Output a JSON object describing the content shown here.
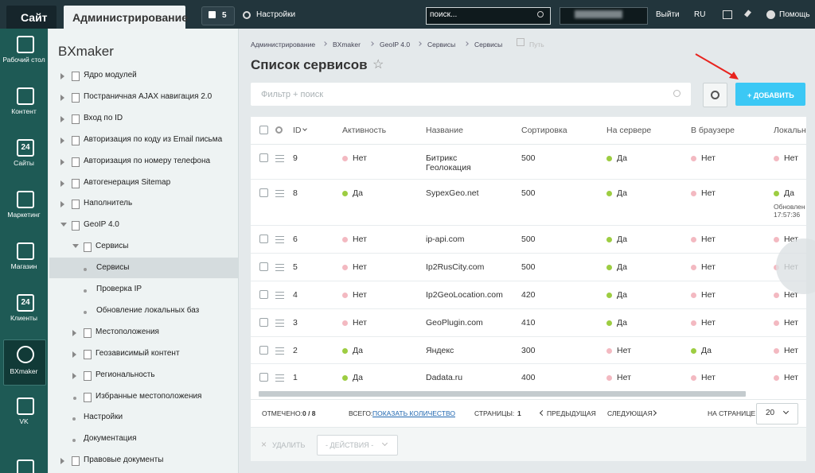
{
  "topbar": {
    "site": "Сайт",
    "admin": "Администрирование",
    "notifications": "5",
    "settings": "Настройки",
    "search_placeholder": "поиск...",
    "logout": "Выйти",
    "lang": "RU",
    "help": "Помощь"
  },
  "nav": [
    {
      "label": "Рабочий стол"
    },
    {
      "label": "Контент"
    },
    {
      "label": "Сайты",
      "icon_text": "24"
    },
    {
      "label": "Маркетинг"
    },
    {
      "label": "Магазин"
    },
    {
      "label": "Клиенты",
      "icon_text": "24"
    },
    {
      "label": "BXmaker",
      "active": true
    },
    {
      "label": "VK"
    }
  ],
  "tree": {
    "title": "BXmaker",
    "items": [
      {
        "label": "Ядро модулей",
        "level": 0,
        "toggle": "closed"
      },
      {
        "label": "Постраничная AJAX навигация 2.0",
        "level": 0,
        "toggle": "closed"
      },
      {
        "label": "Вход по ID",
        "level": 0,
        "toggle": "closed"
      },
      {
        "label": "Авторизация по коду из Email письма",
        "level": 0,
        "toggle": "closed"
      },
      {
        "label": "Авторизация по номеру телефона",
        "level": 0,
        "toggle": "closed"
      },
      {
        "label": "Автогенерация Sitemap",
        "level": 0,
        "toggle": "closed"
      },
      {
        "label": "Наполнитель",
        "level": 0,
        "toggle": "closed"
      },
      {
        "label": "GeoIP 4.0",
        "level": 0,
        "toggle": "open"
      },
      {
        "label": "Сервисы",
        "level": 1,
        "toggle": "open"
      },
      {
        "label": "Сервисы",
        "level": 2,
        "toggle": "none",
        "selected": true
      },
      {
        "label": "Проверка IP",
        "level": 2,
        "toggle": "none"
      },
      {
        "label": "Обновление локальных баз",
        "level": 2,
        "toggle": "none"
      },
      {
        "label": "Местоположения",
        "level": 1,
        "toggle": "closed"
      },
      {
        "label": "Геозависимый контент",
        "level": 1,
        "toggle": "closed"
      },
      {
        "label": "Региональность",
        "level": 1,
        "toggle": "closed"
      },
      {
        "label": "Избранные местоположения",
        "level": 1,
        "toggle": "leaf"
      },
      {
        "label": "Настройки",
        "level": 0,
        "toggle": "none"
      },
      {
        "label": "Документация",
        "level": 0,
        "toggle": "none"
      },
      {
        "label": "Правовые документы",
        "level": 0,
        "toggle": "closed"
      }
    ]
  },
  "breadcrumbs": [
    "Администрирование",
    "BXmaker",
    "GeoIP 4.0",
    "Сервисы",
    "Сервисы"
  ],
  "path_label": "Путь",
  "title": "Список сервисов",
  "filter_placeholder": "Фильтр + поиск",
  "add_button": "+ ДОБАВИТЬ",
  "table": {
    "columns": [
      "ID",
      "Активность",
      "Название",
      "Сортировка",
      "На сервере",
      "В браузере",
      "Локальн"
    ],
    "rows": [
      {
        "cells": [
          "9",
          {
            "text": "Нет",
            "color": "#f3b9c1"
          },
          "Битрикс Геолокация",
          "500",
          {
            "text": "Да",
            "color": "#9dcd42"
          },
          {
            "text": "Нет",
            "color": "#f3b9c1"
          },
          {
            "text": "Нет",
            "color": "#f3b9c1"
          }
        ]
      },
      {
        "cells": [
          "8",
          {
            "text": "Да",
            "color": "#9dcd42"
          },
          "SypexGeo.net",
          "500",
          {
            "text": "Да",
            "color": "#9dcd42"
          },
          {
            "text": "Нет",
            "color": "#f3b9c1"
          },
          {
            "text": "Да",
            "color": "#9dcd42"
          }
        ],
        "note": [
          "Обновлен",
          "17:57:36"
        ]
      },
      {
        "cells": [
          "6",
          {
            "text": "Нет",
            "color": "#f3b9c1"
          },
          "ip-api.com",
          "500",
          {
            "text": "Да",
            "color": "#9dcd42"
          },
          {
            "text": "Нет",
            "color": "#f3b9c1"
          },
          {
            "text": "Нет",
            "color": "#f3b9c1"
          }
        ]
      },
      {
        "cells": [
          "5",
          {
            "text": "Нет",
            "color": "#f3b9c1"
          },
          "Ip2RusCity.com",
          "500",
          {
            "text": "Да",
            "color": "#9dcd42"
          },
          {
            "text": "Нет",
            "color": "#f3b9c1"
          },
          {
            "text": "Нет",
            "color": "#f3b9c1"
          }
        ]
      },
      {
        "cells": [
          "4",
          {
            "text": "Нет",
            "color": "#f3b9c1"
          },
          "Ip2GeoLocation.com",
          "420",
          {
            "text": "Да",
            "color": "#9dcd42"
          },
          {
            "text": "Нет",
            "color": "#f3b9c1"
          },
          {
            "text": "Нет",
            "color": "#f3b9c1"
          }
        ]
      },
      {
        "cells": [
          "3",
          {
            "text": "Нет",
            "color": "#f3b9c1"
          },
          "GeoPlugin.com",
          "410",
          {
            "text": "Да",
            "color": "#9dcd42"
          },
          {
            "text": "Нет",
            "color": "#f3b9c1"
          },
          {
            "text": "Нет",
            "color": "#f3b9c1"
          }
        ]
      },
      {
        "cells": [
          "2",
          {
            "text": "Да",
            "color": "#9dcd42"
          },
          "Яндекс",
          "300",
          {
            "text": "Нет",
            "color": "#f3b9c1"
          },
          {
            "text": "Да",
            "color": "#9dcd42"
          },
          {
            "text": "Нет",
            "color": "#f3b9c1"
          }
        ]
      },
      {
        "cells": [
          "1",
          {
            "text": "Да",
            "color": "#9dcd42"
          },
          "Dadata.ru",
          "400",
          {
            "text": "Нет",
            "color": "#f3b9c1"
          },
          {
            "text": "Нет",
            "color": "#f3b9c1"
          },
          {
            "text": "Нет",
            "color": "#f3b9c1"
          }
        ]
      }
    ]
  },
  "footer": {
    "selected_label": "ОТМЕЧЕНО:",
    "selected_value": "0 / 8",
    "total_label": "ВСЕГО:",
    "total_link": "ПОКАЗАТЬ КОЛИЧЕСТВО",
    "pages_label": "СТРАНИЦЫ:",
    "page": "1",
    "prev": "ПРЕДЫДУЩАЯ",
    "next": "СЛЕДУЮЩАЯ",
    "per_page_label": "НА СТРАНИЦЕ:",
    "per_page": "20"
  },
  "actions": {
    "delete": "УДАЛИТЬ",
    "dropdown": "- ДЕЙСТВИЯ -"
  }
}
